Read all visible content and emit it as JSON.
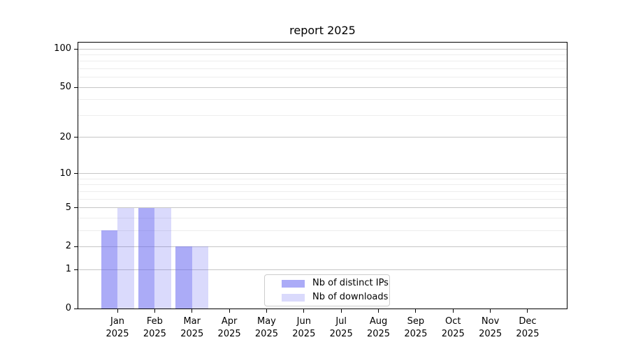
{
  "figure": {
    "background": "#ffffff"
  },
  "chart_data": {
    "type": "bar",
    "title": "report 2025",
    "categories": [
      "Jan 2025",
      "Feb 2025",
      "Mar 2025",
      "Apr 2025",
      "May 2025",
      "Jun 2025",
      "Jul 2025",
      "Aug 2025",
      "Sep 2025",
      "Oct 2025",
      "Nov 2025",
      "Dec 2025"
    ],
    "series": [
      {
        "name": "Nb of distinct IPs",
        "color": "rgba(88,88,240,0.5)",
        "values": [
          3,
          5,
          2,
          0,
          0,
          0,
          0,
          0,
          0,
          0,
          0,
          0
        ]
      },
      {
        "name": "Nb of downloads",
        "color": "rgba(88,88,240,0.22)",
        "values": [
          5,
          5,
          2,
          0,
          0,
          0,
          0,
          0,
          0,
          0,
          0,
          0
        ]
      }
    ],
    "xlabel": "",
    "ylabel": "",
    "yscale": "log1p",
    "ylim": [
      0,
      100
    ],
    "y_major_ticks": [
      0,
      1,
      2,
      5,
      10,
      20,
      50,
      100
    ],
    "y_minor_ticks": [
      3,
      4,
      6,
      7,
      8,
      9,
      30,
      40,
      60,
      70,
      80,
      90
    ],
    "grid": true,
    "legend_position": "lower-center",
    "colors": {
      "grid_major": "#c6c6c6",
      "grid_minor": "#ededed",
      "spine": "#000000",
      "legend_border": "#cccccc",
      "text": "#000000"
    }
  }
}
